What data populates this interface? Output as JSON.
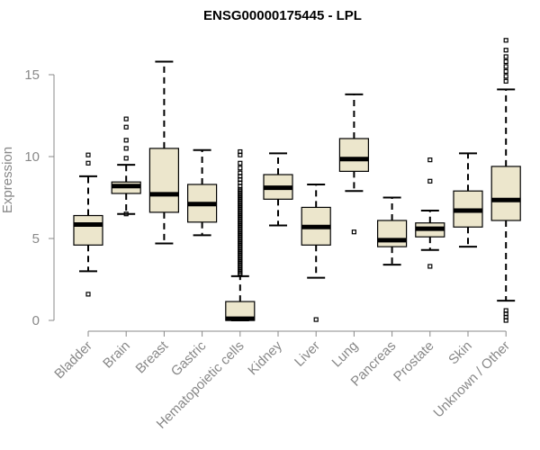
{
  "chart_data": {
    "type": "boxplot",
    "title": "ENSG00000175445 - LPL",
    "xlabel": "",
    "ylabel": "Expression",
    "ylim": [
      0,
      17.5
    ],
    "yticks": [
      0,
      5,
      10,
      15
    ],
    "categories": [
      "Bladder",
      "Brain",
      "Breast",
      "Gastric",
      "Hematopoietic cells",
      "Kidney",
      "Liver",
      "Lung",
      "Pancreas",
      "Prostate",
      "Skin",
      "Unknown / Other"
    ],
    "boxes": [
      {
        "name": "Bladder",
        "whislo": 3.0,
        "q1": 4.6,
        "med": 5.85,
        "q3": 6.4,
        "whishi": 8.8,
        "fliers": [
          1.6,
          9.6,
          10.1
        ]
      },
      {
        "name": "Brain",
        "whislo": 6.5,
        "q1": 7.75,
        "med": 8.2,
        "q3": 8.45,
        "whishi": 9.5,
        "fliers": [
          6.5,
          9.9,
          10.5,
          11.0,
          11.8,
          12.3
        ]
      },
      {
        "name": "Breast",
        "whislo": 4.7,
        "q1": 6.6,
        "med": 7.7,
        "q3": 10.5,
        "whishi": 15.8,
        "fliers": []
      },
      {
        "name": "Gastric",
        "whislo": 5.2,
        "q1": 6.0,
        "med": 7.1,
        "q3": 8.3,
        "whishi": 10.4,
        "fliers": []
      },
      {
        "name": "Hematopoietic cells",
        "whislo": 0.0,
        "q1": 0.0,
        "med": 0.1,
        "q3": 1.15,
        "whishi": 2.7,
        "fliers": [
          2.8,
          2.9,
          3.0,
          3.1,
          3.2,
          3.3,
          3.4,
          3.5,
          3.6,
          3.7,
          3.8,
          3.9,
          4.0,
          4.1,
          4.2,
          4.3,
          4.4,
          4.5,
          4.6,
          4.7,
          4.8,
          4.9,
          5.0,
          5.1,
          5.2,
          5.3,
          5.4,
          5.5,
          5.6,
          5.7,
          5.8,
          5.9,
          6.0,
          6.1,
          6.2,
          6.3,
          6.4,
          6.5,
          6.6,
          6.7,
          6.8,
          6.9,
          7.0,
          7.1,
          7.2,
          7.3,
          7.4,
          7.5,
          7.6,
          7.7,
          7.8,
          7.9,
          8.0,
          8.2,
          8.4,
          8.6,
          8.8,
          9.0,
          9.3,
          9.6,
          10.1,
          10.3
        ]
      },
      {
        "name": "Kidney",
        "whislo": 5.8,
        "q1": 7.4,
        "med": 8.1,
        "q3": 8.9,
        "whishi": 10.2,
        "fliers": []
      },
      {
        "name": "Liver",
        "whislo": 2.6,
        "q1": 4.6,
        "med": 5.7,
        "q3": 6.9,
        "whishi": 8.3,
        "fliers": [
          0.05
        ]
      },
      {
        "name": "Lung",
        "whislo": 7.9,
        "q1": 9.1,
        "med": 9.85,
        "q3": 11.1,
        "whishi": 13.8,
        "fliers": [
          5.4
        ]
      },
      {
        "name": "Pancreas",
        "whislo": 3.4,
        "q1": 4.5,
        "med": 4.9,
        "q3": 6.1,
        "whishi": 7.5,
        "fliers": []
      },
      {
        "name": "Prostate",
        "whislo": 4.3,
        "q1": 5.1,
        "med": 5.6,
        "q3": 5.95,
        "whishi": 6.7,
        "fliers": [
          3.3,
          8.5,
          9.8
        ]
      },
      {
        "name": "Skin",
        "whislo": 4.5,
        "q1": 5.7,
        "med": 6.7,
        "q3": 7.9,
        "whishi": 10.2,
        "fliers": []
      },
      {
        "name": "Unknown / Other",
        "whislo": 1.2,
        "q1": 6.1,
        "med": 7.35,
        "q3": 9.4,
        "whishi": 14.1,
        "fliers": [
          0.0,
          0.2,
          0.4,
          0.6,
          14.6,
          14.9,
          15.2,
          15.5,
          15.8,
          16.1,
          16.5,
          17.1
        ]
      }
    ],
    "grid": false,
    "legend": "none"
  }
}
